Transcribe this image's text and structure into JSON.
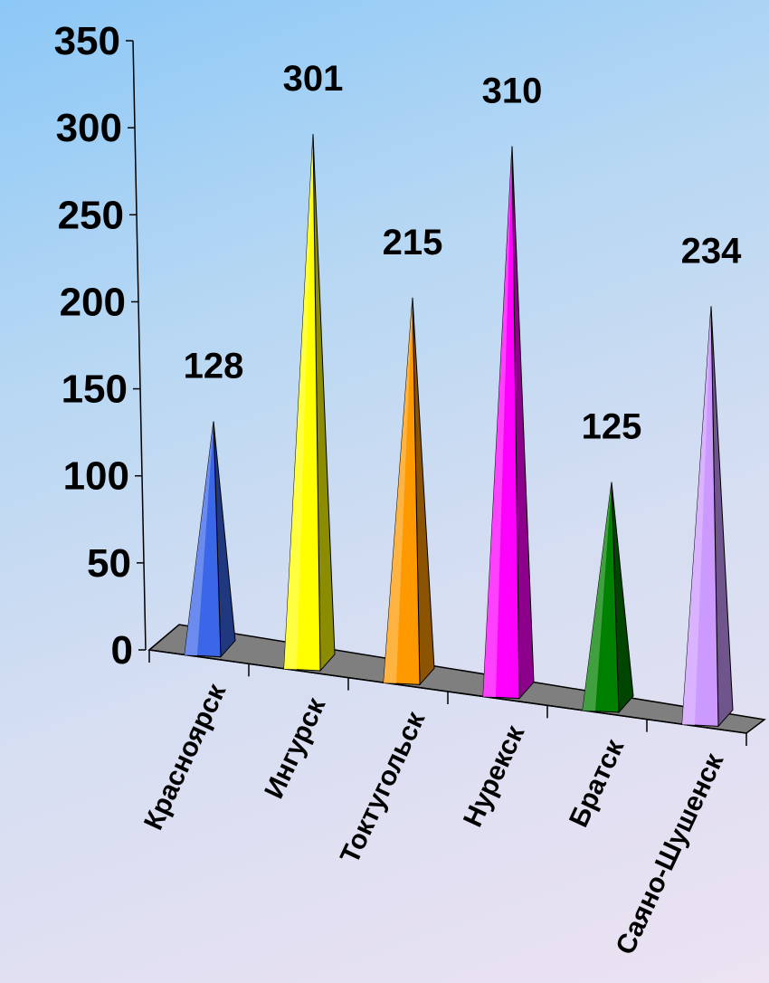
{
  "chart_data": {
    "type": "bar",
    "style": "3d-pyramid",
    "categories": [
      "Красноярск",
      "Ингурск",
      "Токтугольск",
      "Нурекск",
      "Братск",
      "Саяно-Шушенск"
    ],
    "values": [
      128,
      301,
      215,
      310,
      125,
      234
    ],
    "colors": [
      "#3a66e8",
      "#ffff00",
      "#ff9900",
      "#ff00ff",
      "#008000",
      "#cc99ff"
    ],
    "ylim": [
      0,
      350
    ],
    "yticks": [
      "0",
      "50",
      "100",
      "150",
      "200",
      "250",
      "300",
      "350"
    ],
    "title": "",
    "xlabel": "",
    "ylabel": "",
    "grid": false,
    "legend": "none",
    "floor_color": "#7f7f7f"
  }
}
